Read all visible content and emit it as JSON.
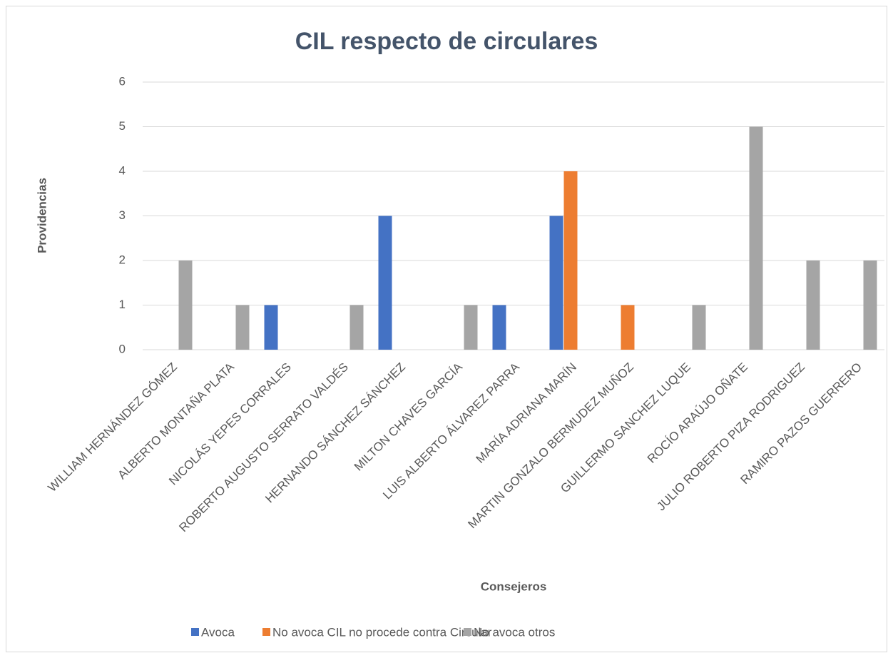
{
  "chart_data": {
    "type": "bar",
    "title": "CIL respecto de circulares",
    "x_label": "Consejeros",
    "y_label": "Providencias",
    "categories": [
      "WILLIAM HERNÁNDEZ GÓMEZ",
      "ALBERTO MONTAÑA PLATA",
      "NICOLÁS YEPES CORRALES",
      "ROBERTO AUGUSTO SERRATO VALDÉS",
      "HERNANDO SÁNCHEZ SÁNCHEZ",
      "MILTON CHAVES GARCÍA",
      "LUIS ALBERTO ÁLVAREZ PARRA",
      "MARÍA ADRIANA MARÍN",
      "MARTIN GONZALO BERMUDEZ MUÑOZ",
      "GUILLERMO SANCHEZ LUQUE",
      "ROCÍO ARAÚJO OÑATE",
      "JULIO ROBERTO PIZA RODRIGUEZ",
      "RAMIRO PAZOS GUERRERO"
    ],
    "series": [
      {
        "name": "Avoca",
        "color": "#4472c4",
        "values": [
          null,
          null,
          1,
          null,
          3,
          null,
          1,
          3,
          null,
          null,
          null,
          null,
          null
        ]
      },
      {
        "name": "No avoca CIL no procede contra Circular",
        "color": "#ed7d31",
        "values": [
          null,
          null,
          null,
          null,
          null,
          null,
          null,
          4,
          1,
          null,
          null,
          null,
          null
        ]
      },
      {
        "name": "No avoca otros",
        "color": "#a5a5a5",
        "values": [
          2,
          1,
          null,
          1,
          null,
          1,
          null,
          null,
          null,
          1,
          5,
          2,
          2
        ]
      }
    ],
    "ylim": [
      0,
      6
    ],
    "yticks": [
      0,
      1,
      2,
      3,
      4,
      5,
      6
    ],
    "grid": true,
    "legend": "bottom"
  }
}
